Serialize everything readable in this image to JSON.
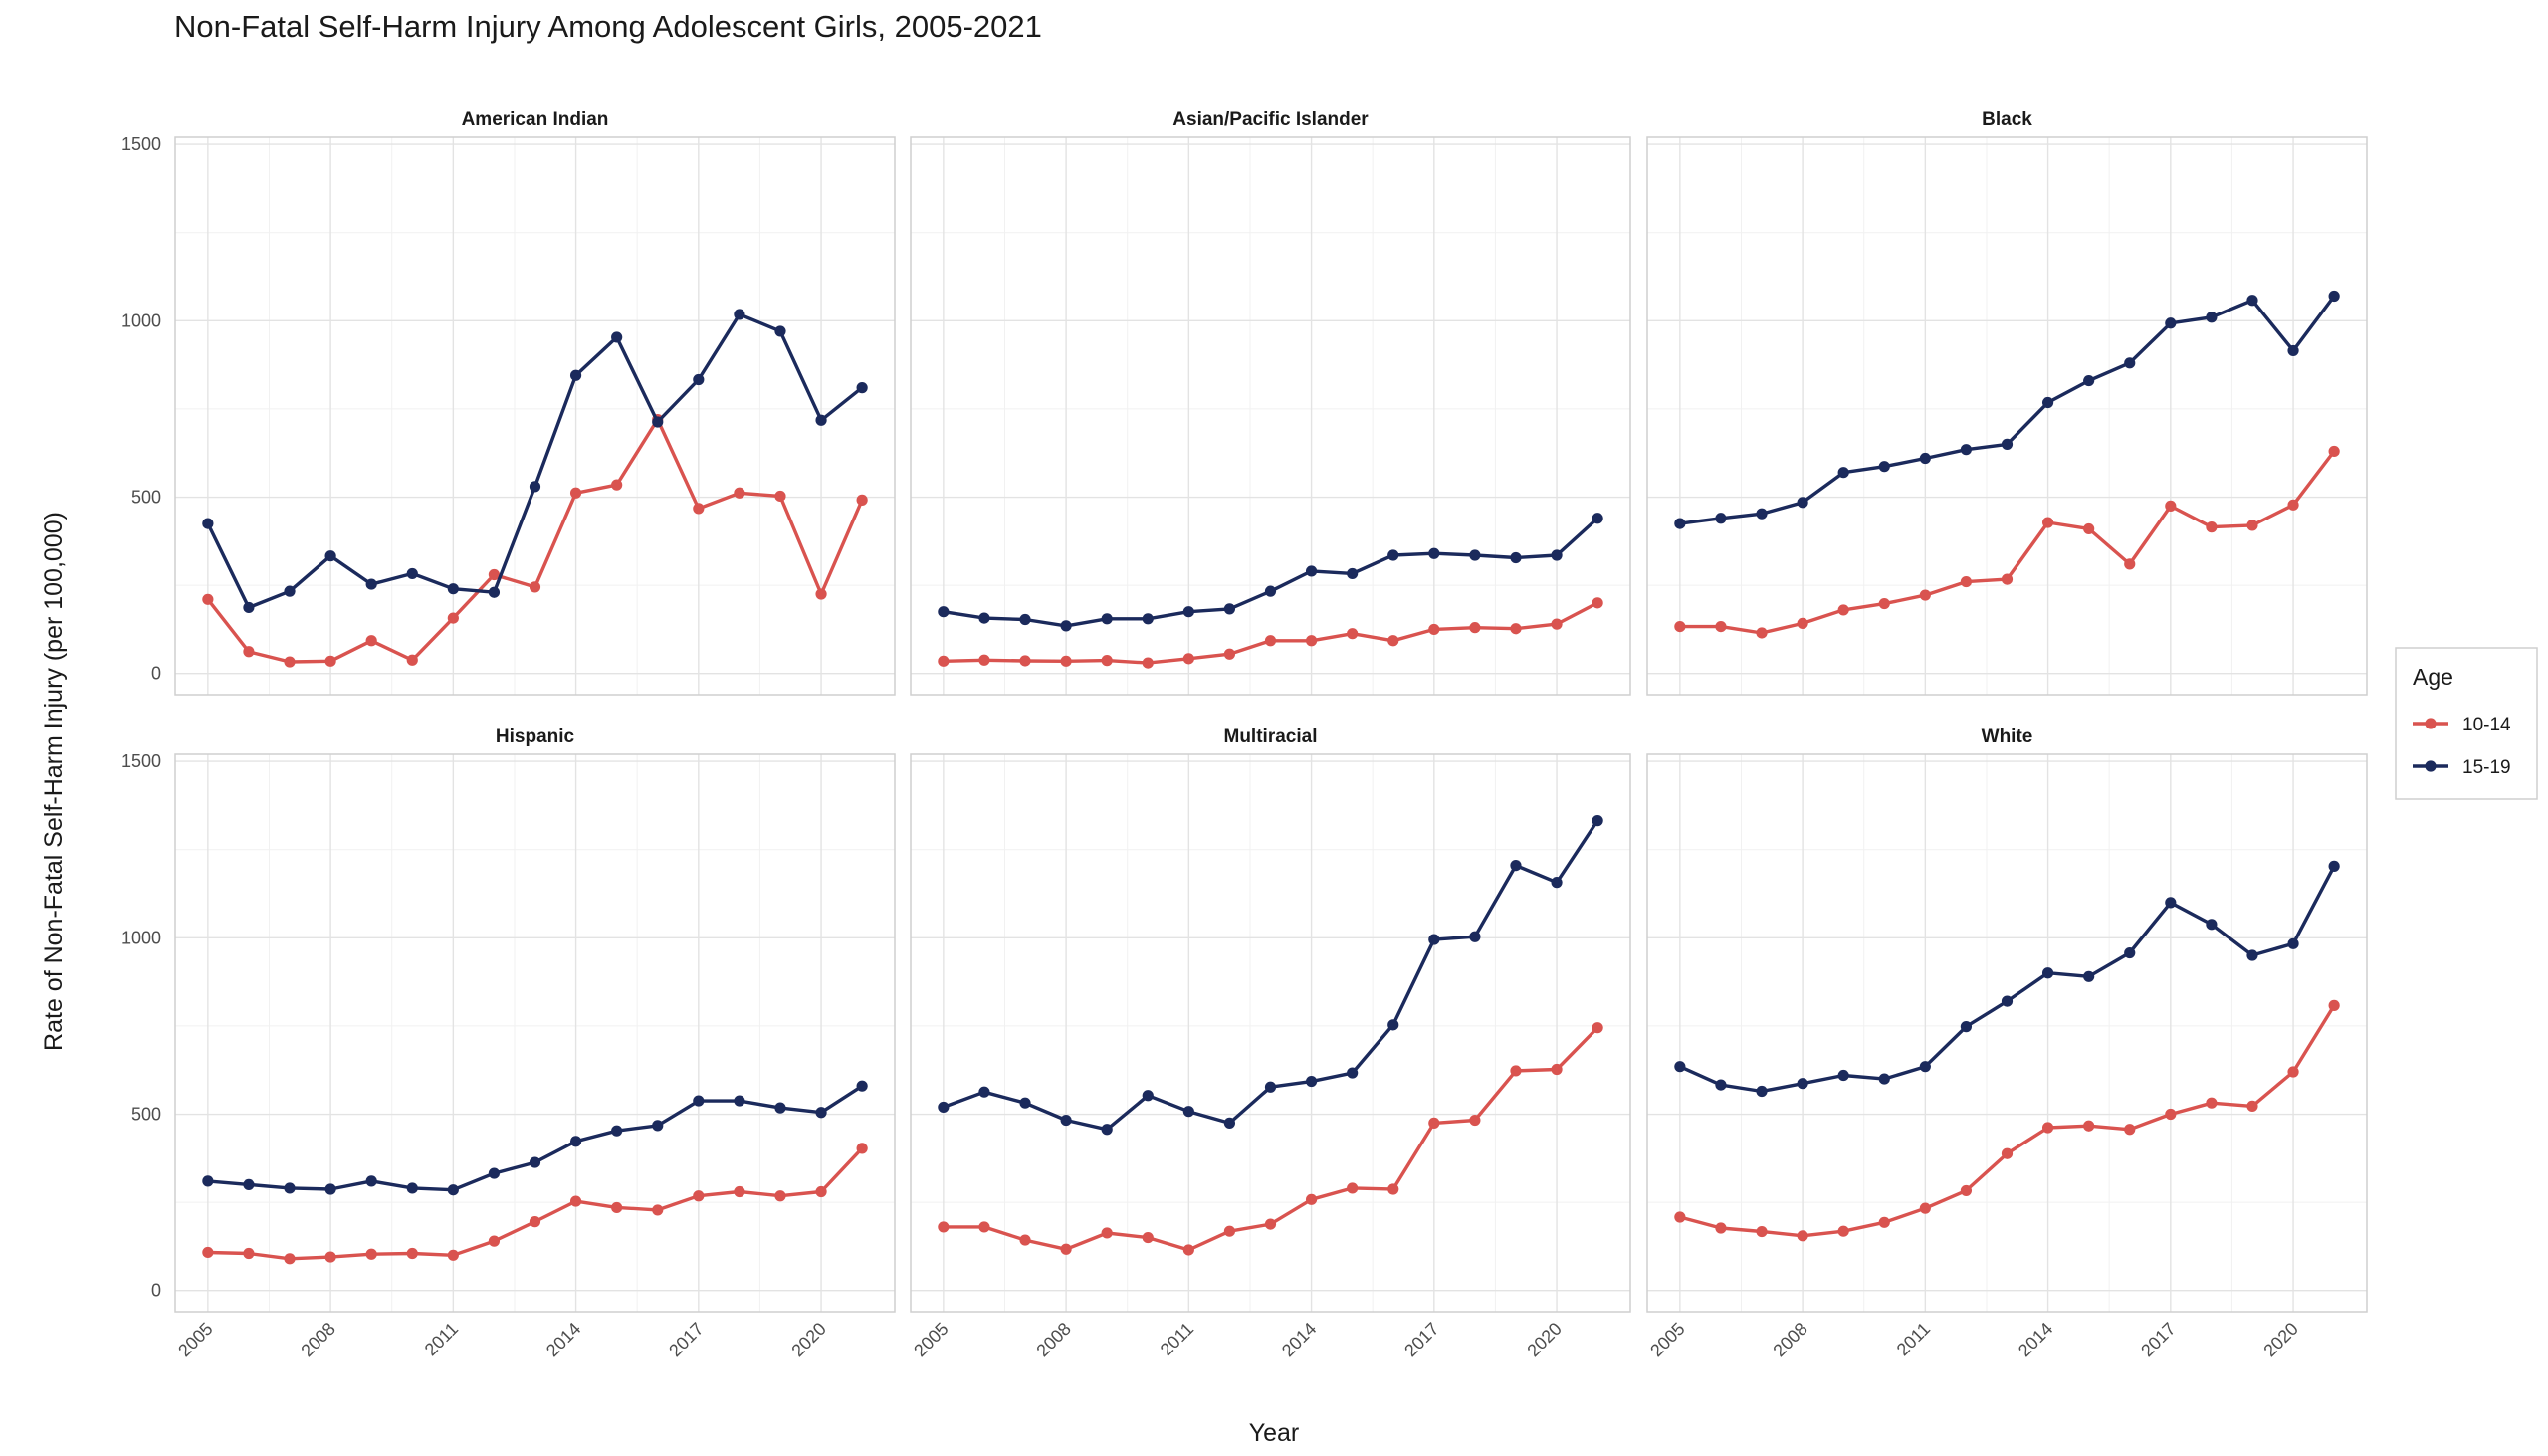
{
  "chart_data": {
    "type": "line",
    "title": "Non-Fatal Self-Harm Injury Among Adolescent Girls, 2005-2021",
    "xlabel": "Year",
    "ylabel": "Rate of Non-Fatal Self-Harm Injury (per 100,000)",
    "x": [
      2005,
      2006,
      2007,
      2008,
      2009,
      2010,
      2011,
      2012,
      2013,
      2014,
      2015,
      2016,
      2017,
      2018,
      2019,
      2020,
      2021
    ],
    "x_ticks": [
      2005,
      2008,
      2011,
      2014,
      2017,
      2020
    ],
    "y_ticks": [
      0,
      500,
      1000,
      1500
    ],
    "ylim": [
      -60,
      1520
    ],
    "grid": true,
    "legend": {
      "title": "Age",
      "position": "right",
      "entries": [
        {
          "name": "10-14",
          "color": "#d9534f"
        },
        {
          "name": "15-19",
          "color": "#1b2a5c"
        }
      ]
    },
    "panels": [
      {
        "name": "American Indian",
        "series": [
          {
            "name": "10-14",
            "values": [
              210,
              62,
              33,
              35,
              93,
              38,
              157,
              280,
              245,
              512,
              535,
              720,
              468,
              512,
              503,
              225,
              492
            ]
          },
          {
            "name": "15-19",
            "values": [
              425,
              187,
              233,
              333,
              253,
              283,
              240,
              230,
              530,
              845,
              953,
              713,
              833,
              1018,
              970,
              718,
              810
            ]
          }
        ]
      },
      {
        "name": "Asian/Pacific Islander",
        "series": [
          {
            "name": "10-14",
            "values": [
              35,
              38,
              36,
              35,
              37,
              30,
              42,
              55,
              93,
              93,
              113,
              93,
              125,
              130,
              127,
              140,
              200
            ]
          },
          {
            "name": "15-19",
            "values": [
              175,
              157,
              153,
              135,
              155,
              155,
              175,
              183,
              233,
              290,
              283,
              335,
              340,
              335,
              328,
              335,
              440
            ]
          }
        ]
      },
      {
        "name": "Black",
        "series": [
          {
            "name": "10-14",
            "values": [
              133,
              133,
              115,
              142,
              180,
              198,
              222,
              260,
              267,
              428,
              410,
              310,
              475,
              415,
              420,
              478,
              630
            ]
          },
          {
            "name": "15-19",
            "values": [
              425,
              440,
              453,
              485,
              570,
              587,
              610,
              635,
              650,
              768,
              830,
              880,
              993,
              1010,
              1058,
              915,
              1070
            ]
          }
        ]
      },
      {
        "name": "Hispanic",
        "series": [
          {
            "name": "10-14",
            "values": [
              108,
              105,
              90,
              95,
              103,
              105,
              100,
              140,
              195,
              253,
              235,
              228,
              268,
              280,
              268,
              280,
              403
            ]
          },
          {
            "name": "15-19",
            "values": [
              310,
              300,
              290,
              287,
              310,
              290,
              285,
              332,
              363,
              423,
              453,
              468,
              538,
              538,
              518,
              505,
              580
            ]
          }
        ]
      },
      {
        "name": "Multiracial",
        "series": [
          {
            "name": "10-14",
            "values": [
              180,
              180,
              143,
              117,
              163,
              150,
              115,
              168,
              188,
              258,
              290,
              287,
              475,
              483,
              623,
              627,
              745
            ]
          },
          {
            "name": "15-19",
            "values": [
              520,
              563,
              532,
              483,
              457,
              553,
              508,
              475,
              577,
              593,
              617,
              753,
              995,
              1003,
              1205,
              1157,
              1332
            ]
          }
        ]
      },
      {
        "name": "White",
        "series": [
          {
            "name": "10-14",
            "values": [
              208,
              177,
              167,
              155,
              168,
              193,
              233,
              283,
              388,
              462,
              467,
              457,
              500,
              532,
              523,
              620,
              808
            ]
          },
          {
            "name": "15-19",
            "values": [
              635,
              583,
              565,
              587,
              610,
              600,
              635,
              748,
              820,
              900,
              890,
              957,
              1100,
              1038,
              950,
              983,
              1203
            ]
          }
        ]
      }
    ]
  }
}
